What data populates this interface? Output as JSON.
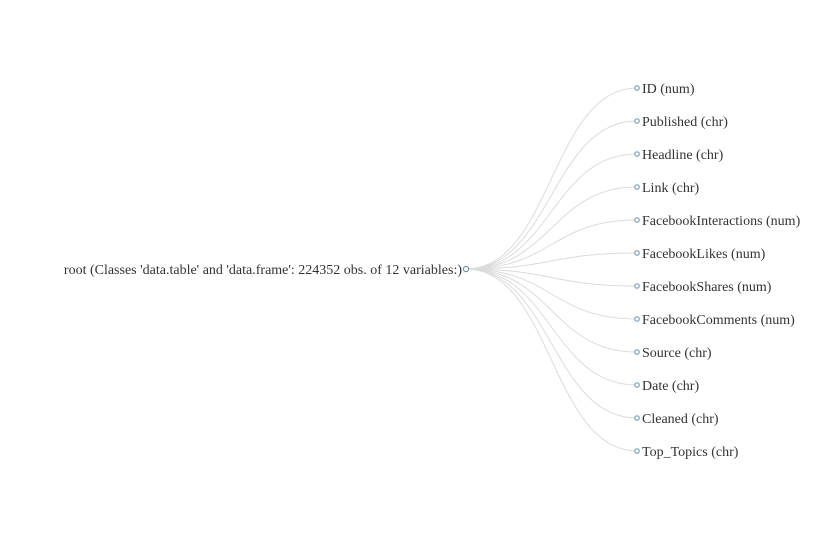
{
  "root": {
    "label": "root (Classes 'data.table' and 'data.frame': 224352 obs. of 12 variables:)",
    "collapsed": true
  },
  "children": [
    {
      "label": "ID (num)"
    },
    {
      "label": "Published (chr)"
    },
    {
      "label": "Headline (chr)"
    },
    {
      "label": "Link (chr)"
    },
    {
      "label": "FacebookInteractions (num)"
    },
    {
      "label": "FacebookLikes (num)"
    },
    {
      "label": "FacebookShares (num)"
    },
    {
      "label": "FacebookComments (num)"
    },
    {
      "label": "Source (chr)"
    },
    {
      "label": "Date (chr)"
    },
    {
      "label": "Cleaned (chr)"
    },
    {
      "label": "Top_Topics (chr)"
    }
  ],
  "colors": {
    "link": "#dcdcdc",
    "root_stroke": "#6f8fb0",
    "leaf_stroke": "#7a9ec4",
    "text": "#333333"
  }
}
